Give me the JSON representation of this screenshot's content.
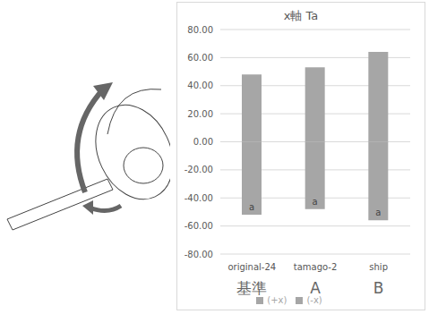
{
  "chart_data": {
    "type": "bar",
    "title": "x軸 Ta",
    "categories": [
      "original-24",
      "tamago-2",
      "ship"
    ],
    "group_labels": [
      "基準",
      "A",
      "B"
    ],
    "annotations": [
      "a",
      "a",
      "a"
    ],
    "series": [
      {
        "name": "(+x)",
        "color": "#a6a6a6",
        "values": [
          48,
          53,
          64
        ]
      },
      {
        "name": "(-x)",
        "color": "#a6a6a6",
        "values": [
          -52,
          -48,
          -56
        ]
      }
    ],
    "stacked": true,
    "ylim": [
      -80,
      80
    ],
    "yticks": [
      {
        "value": -80,
        "label": "-80.00"
      },
      {
        "value": -60,
        "label": "-60.00"
      },
      {
        "value": -40,
        "label": "-40.00"
      },
      {
        "value": -20,
        "label": "-20.00"
      },
      {
        "value": 0,
        "label": "0.00"
      },
      {
        "value": 20,
        "label": "20.00"
      },
      {
        "value": 40,
        "label": "40.00"
      },
      {
        "value": 60,
        "label": "60.00"
      },
      {
        "value": 80,
        "label": "80.00"
      }
    ],
    "grid": true,
    "legend": "bottom"
  }
}
